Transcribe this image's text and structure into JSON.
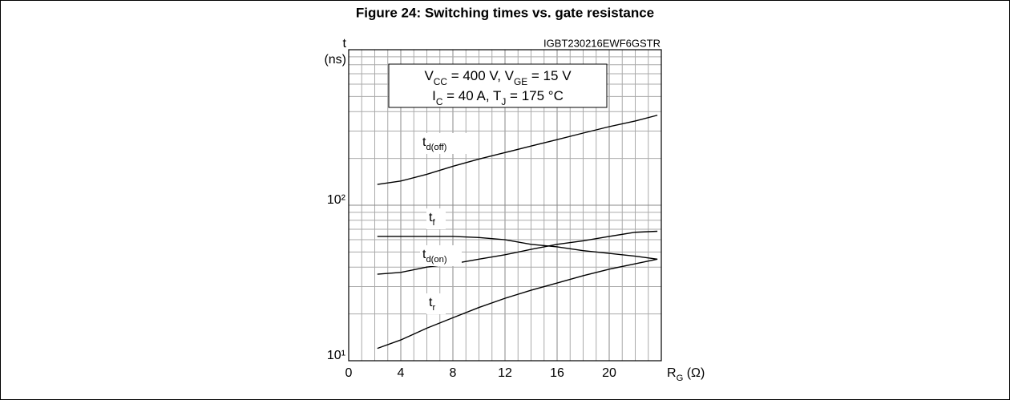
{
  "chart_data": {
    "type": "line",
    "title": "Figure 24: Switching times vs. gate resistance",
    "code": "IGBT230216EWF6GSTR",
    "conditions": [
      [
        "V",
        "CC",
        " = 400 V, V",
        "GE",
        " = 15 V"
      ],
      [
        "I",
        "C",
        " = 40 A, T",
        "J",
        " = 175 °C"
      ]
    ],
    "x_label": [
      "R",
      "G",
      " (Ω)"
    ],
    "y_label": [
      "t",
      "(ns)"
    ],
    "x": [
      2.2,
      4,
      6,
      8,
      10,
      12,
      14,
      16,
      18,
      20,
      22,
      23.7
    ],
    "series": [
      {
        "name": "td(off)",
        "color": "#000000",
        "values": [
          136,
          143,
          158,
          178,
          198,
          218,
          240,
          264,
          291,
          320,
          348,
          379
        ]
      },
      {
        "name": "tf",
        "color": "#000000",
        "values": [
          63,
          63,
          63,
          63,
          62,
          60,
          56,
          54,
          51,
          49,
          47,
          45
        ]
      },
      {
        "name": "td(on)",
        "color": "#000000",
        "values": [
          36,
          37,
          40,
          42,
          45,
          48,
          52,
          56,
          59,
          63,
          67,
          68
        ]
      },
      {
        "name": "tr",
        "color": "#000000",
        "values": [
          12,
          13.6,
          16.2,
          18.9,
          22,
          25.2,
          28.4,
          31.6,
          35.2,
          38.8,
          42,
          45
        ]
      }
    ],
    "xlim": [
      0,
      24
    ],
    "xticks": [
      0,
      4,
      8,
      12,
      16,
      20
    ],
    "ylim": [
      10,
      1000
    ],
    "yticks": [
      {
        "value": 10,
        "label": "10¹"
      },
      {
        "value": 100,
        "label": "10²"
      }
    ],
    "log_y": true,
    "grid": true
  }
}
